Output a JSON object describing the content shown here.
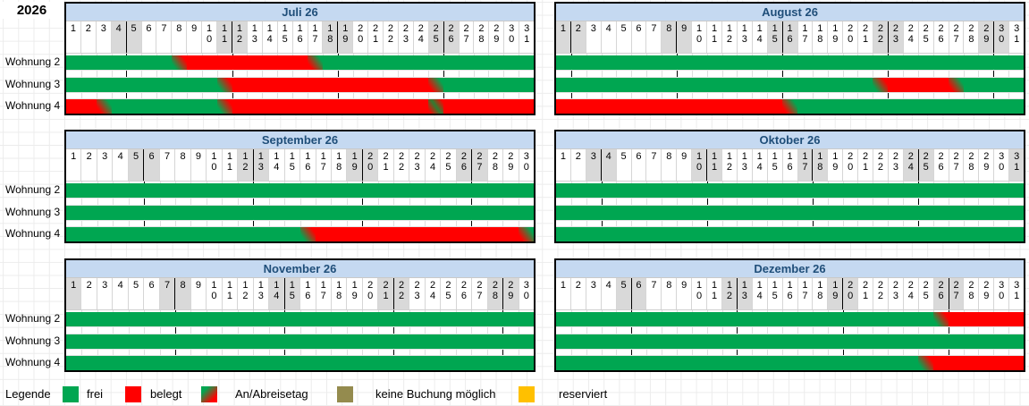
{
  "year": "2026",
  "colors": {
    "free": "#00a651",
    "occupied": "#ff0000",
    "no_booking": "#948b4e",
    "reserved": "#ffc000",
    "weekend_bg": "#d9d9d9",
    "header_bg": "#c5d9f1",
    "header_text": "#1f4e79"
  },
  "rooms": [
    "Wohnung 2",
    "Wohnung 3",
    "Wohnung 4"
  ],
  "legend": {
    "title": "Legende",
    "items": [
      {
        "label": "frei",
        "state": "free"
      },
      {
        "label": "belegt",
        "state": "occupied"
      },
      {
        "label": "An/Abreisetag",
        "state": "arrive"
      },
      {
        "label": "keine Buchung möglich",
        "state": "no_booking"
      },
      {
        "label": "reserviert",
        "state": "reserved"
      }
    ]
  },
  "months": [
    {
      "name": "Juli 26",
      "days": 31,
      "weekends": [
        4,
        5,
        11,
        12,
        18,
        19,
        25,
        26
      ],
      "week_lines": [
        5,
        12,
        19,
        26
      ],
      "rows": [
        {
          "room": "Wohnung 2",
          "segments": [
            {
              "from": 1,
              "to": 7,
              "state": "free"
            },
            {
              "from": 8,
              "to": 8,
              "state": "arrive"
            },
            {
              "from": 9,
              "to": 16,
              "state": "occupied"
            },
            {
              "from": 17,
              "to": 17,
              "state": "depart"
            },
            {
              "from": 18,
              "to": 31,
              "state": "free"
            }
          ]
        },
        {
          "room": "Wohnung 3",
          "segments": [
            {
              "from": 1,
              "to": 10,
              "state": "free"
            },
            {
              "from": 11,
              "to": 11,
              "state": "arrive"
            },
            {
              "from": 12,
              "to": 24,
              "state": "occupied"
            },
            {
              "from": 25,
              "to": 25,
              "state": "depart"
            },
            {
              "from": 26,
              "to": 31,
              "state": "free"
            }
          ]
        },
        {
          "room": "Wohnung 4",
          "segments": [
            {
              "from": 1,
              "to": 2,
              "state": "occupied"
            },
            {
              "from": 3,
              "to": 3,
              "state": "depart"
            },
            {
              "from": 4,
              "to": 10,
              "state": "free"
            },
            {
              "from": 11,
              "to": 11,
              "state": "arrive"
            },
            {
              "from": 12,
              "to": 24,
              "state": "occupied"
            },
            {
              "from": 25,
              "to": 25,
              "state": "turnover"
            },
            {
              "from": 26,
              "to": 31,
              "state": "occupied"
            }
          ]
        }
      ]
    },
    {
      "name": "August 26",
      "days": 31,
      "weekends": [
        1,
        2,
        8,
        9,
        15,
        16,
        22,
        23,
        29,
        30
      ],
      "week_lines": [
        2,
        9,
        16,
        23,
        30
      ],
      "rows": [
        {
          "room": "Wohnung 2",
          "segments": [
            {
              "from": 1,
              "to": 31,
              "state": "free"
            }
          ]
        },
        {
          "room": "Wohnung 3",
          "segments": [
            {
              "from": 1,
              "to": 21,
              "state": "free"
            },
            {
              "from": 22,
              "to": 22,
              "state": "arrive"
            },
            {
              "from": 23,
              "to": 26,
              "state": "occupied"
            },
            {
              "from": 27,
              "to": 27,
              "state": "depart"
            },
            {
              "from": 28,
              "to": 31,
              "state": "free"
            }
          ]
        },
        {
          "room": "Wohnung 4",
          "segments": [
            {
              "from": 1,
              "to": 15,
              "state": "occupied"
            },
            {
              "from": 16,
              "to": 16,
              "state": "depart"
            },
            {
              "from": 17,
              "to": 31,
              "state": "free"
            }
          ]
        }
      ]
    },
    {
      "name": "September 26",
      "days": 30,
      "weekends": [
        5,
        6,
        12,
        13,
        19,
        20,
        26,
        27
      ],
      "week_lines": [
        6,
        13,
        20,
        27
      ],
      "rows": [
        {
          "room": "Wohnung 2",
          "segments": [
            {
              "from": 1,
              "to": 30,
              "state": "free"
            }
          ]
        },
        {
          "room": "Wohnung 3",
          "segments": [
            {
              "from": 1,
              "to": 30,
              "state": "free"
            }
          ]
        },
        {
          "room": "Wohnung 4",
          "segments": [
            {
              "from": 1,
              "to": 15,
              "state": "free"
            },
            {
              "from": 16,
              "to": 16,
              "state": "arrive"
            },
            {
              "from": 17,
              "to": 29,
              "state": "occupied"
            },
            {
              "from": 30,
              "to": 30,
              "state": "depart"
            }
          ]
        }
      ]
    },
    {
      "name": "Oktober 26",
      "days": 31,
      "weekends": [
        3,
        4,
        10,
        11,
        17,
        18,
        24,
        25,
        31
      ],
      "week_lines": [
        4,
        11,
        18,
        25
      ],
      "rows": [
        {
          "room": "Wohnung 2",
          "segments": [
            {
              "from": 1,
              "to": 31,
              "state": "free"
            }
          ]
        },
        {
          "room": "Wohnung 3",
          "segments": [
            {
              "from": 1,
              "to": 31,
              "state": "free"
            }
          ]
        },
        {
          "room": "Wohnung 4",
          "segments": [
            {
              "from": 1,
              "to": 31,
              "state": "free"
            }
          ]
        }
      ]
    },
    {
      "name": "November 26",
      "days": 30,
      "weekends": [
        1,
        7,
        8,
        14,
        15,
        21,
        22,
        28,
        29
      ],
      "week_lines": [
        8,
        15,
        22,
        29
      ],
      "rows": [
        {
          "room": "Wohnung 2",
          "segments": [
            {
              "from": 1,
              "to": 30,
              "state": "free"
            }
          ]
        },
        {
          "room": "Wohnung 3",
          "segments": [
            {
              "from": 1,
              "to": 30,
              "state": "free"
            }
          ]
        },
        {
          "room": "Wohnung 4",
          "segments": [
            {
              "from": 1,
              "to": 30,
              "state": "free"
            }
          ]
        }
      ]
    },
    {
      "name": "Dezember 26",
      "days": 31,
      "weekends": [
        5,
        6,
        12,
        13,
        19,
        20,
        26,
        27
      ],
      "week_lines": [
        6,
        13,
        20,
        27
      ],
      "rows": [
        {
          "room": "Wohnung 2",
          "segments": [
            {
              "from": 1,
              "to": 25,
              "state": "free"
            },
            {
              "from": 26,
              "to": 26,
              "state": "arrive"
            },
            {
              "from": 27,
              "to": 31,
              "state": "occupied"
            }
          ]
        },
        {
          "room": "Wohnung 3",
          "segments": [
            {
              "from": 1,
              "to": 31,
              "state": "free"
            }
          ]
        },
        {
          "room": "Wohnung 4",
          "segments": [
            {
              "from": 1,
              "to": 24,
              "state": "free"
            },
            {
              "from": 25,
              "to": 25,
              "state": "arrive"
            },
            {
              "from": 26,
              "to": 31,
              "state": "occupied"
            }
          ]
        }
      ]
    }
  ]
}
